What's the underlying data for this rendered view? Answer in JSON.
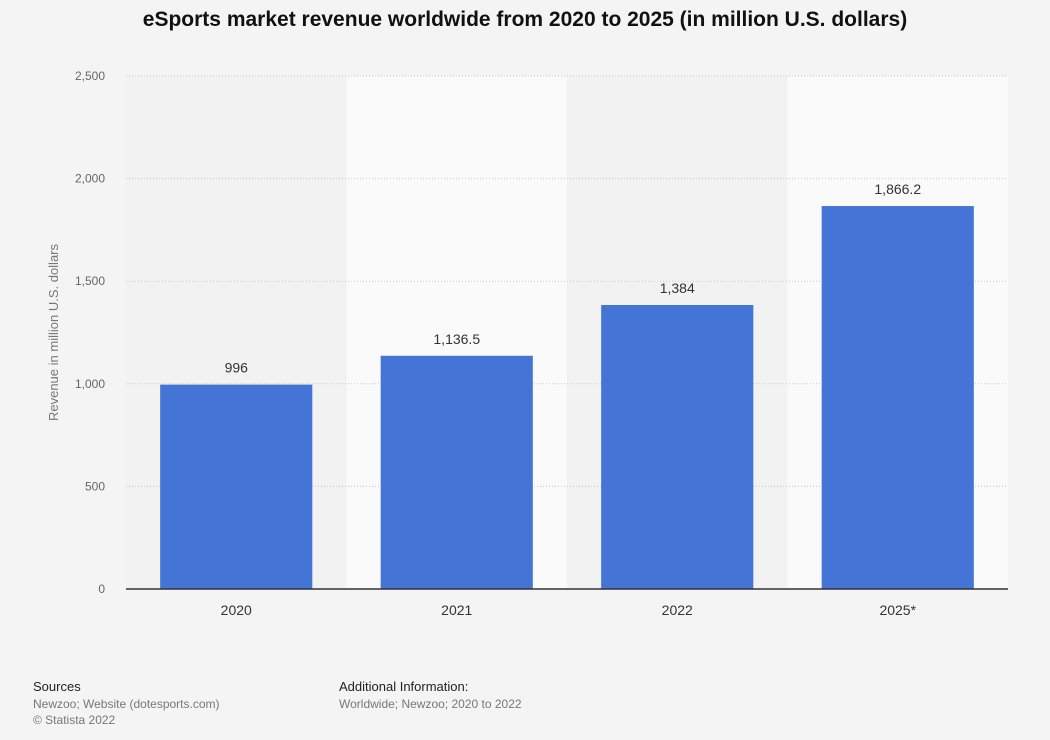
{
  "chart_data": {
    "type": "bar",
    "title": "eSports market revenue worldwide from 2020 to 2025 (in million U.S. dollars)",
    "ylabel": "Revenue in million U.S. dollars",
    "xlabel": "",
    "categories": [
      "2020",
      "2021",
      "2022",
      "2025*"
    ],
    "values": [
      996,
      1136.5,
      1384,
      1866.2
    ],
    "value_labels": [
      "996",
      "1,136.5",
      "1,384",
      "1,866.2"
    ],
    "ylim": [
      0,
      2500
    ],
    "yticks": [
      0,
      500,
      1000,
      1500,
      2000,
      2500
    ],
    "ytick_labels": [
      "0",
      "500",
      "1,000",
      "1,500",
      "2,000",
      "2,500"
    ],
    "grid": true,
    "bar_color": "#4374d6"
  },
  "footer": {
    "sources_heading": "Sources",
    "sources_line1": "Newzoo; Website (dotesports.com)",
    "sources_line2": "© Statista 2022",
    "info_heading": "Additional Information:",
    "info_line1": "Worldwide; Newzoo; 2020 to 2022"
  }
}
